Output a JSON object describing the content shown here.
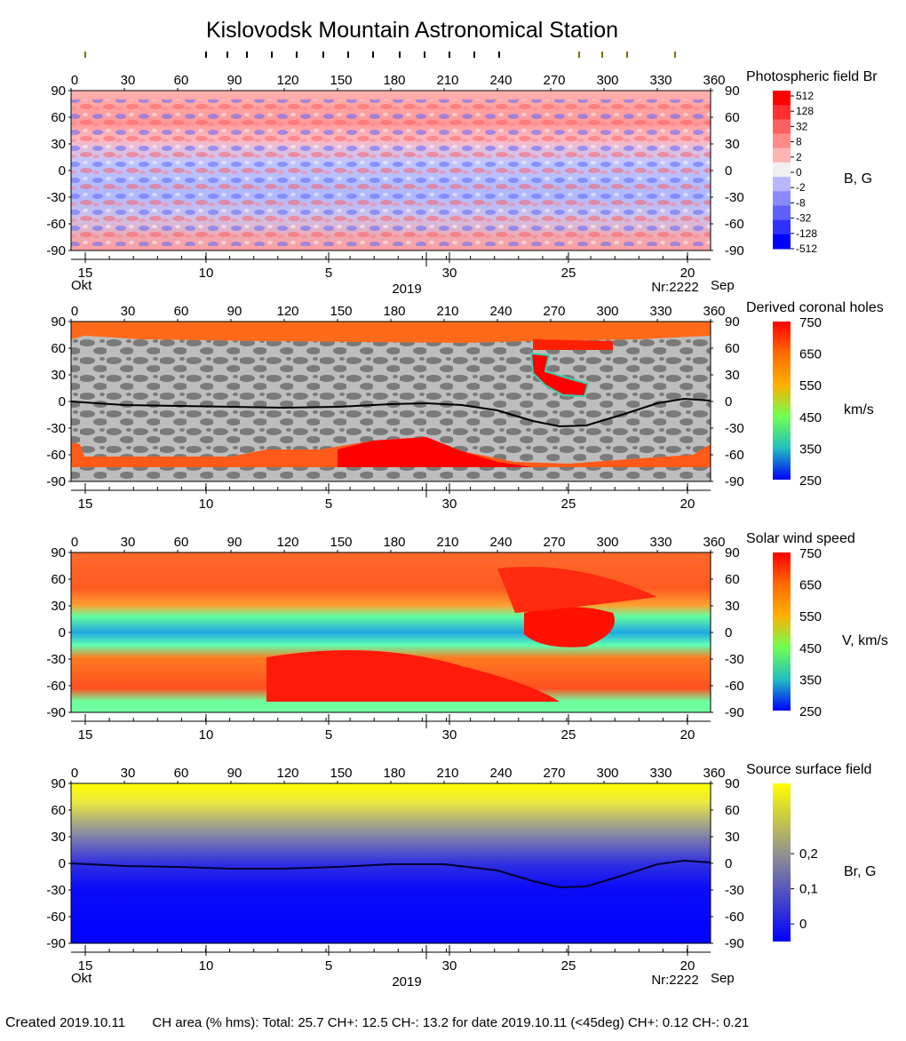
{
  "title": "Kislovodsk Mountain Astronomical Station",
  "top_ticks": [
    {
      "lon": 8,
      "color": "#807000"
    },
    {
      "lon": 76,
      "color": "#000000"
    },
    {
      "lon": 88,
      "color": "#000000"
    },
    {
      "lon": 99,
      "color": "#000000"
    },
    {
      "lon": 113,
      "color": "#000000"
    },
    {
      "lon": 127,
      "color": "#000000"
    },
    {
      "lon": 142,
      "color": "#000000"
    },
    {
      "lon": 156,
      "color": "#000000"
    },
    {
      "lon": 170,
      "color": "#000000"
    },
    {
      "lon": 185,
      "color": "#000000"
    },
    {
      "lon": 199,
      "color": "#000000"
    },
    {
      "lon": 213,
      "color": "#000000"
    },
    {
      "lon": 227,
      "color": "#000000"
    },
    {
      "lon": 241,
      "color": "#000000"
    },
    {
      "lon": 286,
      "color": "#807000"
    },
    {
      "lon": 299,
      "color": "#807000"
    },
    {
      "lon": 313,
      "color": "#807000"
    },
    {
      "lon": 340,
      "color": "#807000"
    }
  ],
  "chart_data": [
    {
      "type": "heatmap",
      "title": "Photospheric field Br",
      "unit": "B, G",
      "x_ticks": [
        "0",
        "30",
        "60",
        "90",
        "120",
        "150",
        "180",
        "210",
        "240",
        "270",
        "300",
        "330",
        "360"
      ],
      "y_ticks": [
        "90",
        "60",
        "30",
        "0",
        "-30",
        "-60",
        "-90"
      ],
      "xlim": [
        0,
        360
      ],
      "ylim": [
        -90,
        90
      ],
      "date_ticks": [
        {
          "lon": 8,
          "label": "15"
        },
        {
          "lon": 76,
          "label": "10"
        },
        {
          "lon": 145,
          "label": "5"
        },
        {
          "lon": 213,
          "label": "30"
        },
        {
          "lon": 280,
          "label": "25"
        },
        {
          "lon": 347,
          "label": "20"
        }
      ],
      "month_left": "Okt",
      "year": "2019",
      "rotation": "Nr:2222",
      "month_right": "Sep",
      "colorbar": {
        "labels": [
          "512",
          "128",
          "32",
          "8",
          "2",
          "0",
          "-2",
          "-8",
          "-32",
          "-128",
          "-512"
        ],
        "colors": [
          "#ff0000",
          "#ff3030",
          "#ff6060",
          "#ff8a8a",
          "#ffb4b4",
          "#f0f0f0",
          "#b8b8ff",
          "#8a8aff",
          "#6060ff",
          "#3030ff",
          "#0000ff"
        ]
      }
    },
    {
      "type": "heatmap",
      "title": "Derived coronal holes",
      "unit": "km/s",
      "x_ticks": [
        "0",
        "30",
        "60",
        "90",
        "120",
        "150",
        "180",
        "210",
        "240",
        "270",
        "300",
        "330",
        "360"
      ],
      "y_ticks": [
        "90",
        "60",
        "30",
        "0",
        "-30",
        "-60",
        "-90"
      ],
      "xlim": [
        0,
        360
      ],
      "ylim": [
        -90,
        90
      ],
      "date_ticks": [
        {
          "lon": 8,
          "label": "15"
        },
        {
          "lon": 76,
          "label": "10"
        },
        {
          "lon": 145,
          "label": "5"
        },
        {
          "lon": 213,
          "label": "30"
        },
        {
          "lon": 280,
          "label": "25"
        },
        {
          "lon": 347,
          "label": "20"
        }
      ],
      "colorbar": {
        "labels": [
          "750",
          "650",
          "550",
          "450",
          "350",
          "250"
        ],
        "colors": [
          "#ff0000",
          "#ff6a00",
          "#ffb000",
          "#70ff50",
          "#20c0c0",
          "#0000ff"
        ]
      },
      "neutral_line": [
        [
          0,
          0
        ],
        [
          30,
          -4
        ],
        [
          60,
          -5
        ],
        [
          90,
          -6
        ],
        [
          120,
          -7
        ],
        [
          150,
          -6
        ],
        [
          180,
          -3
        ],
        [
          200,
          -2
        ],
        [
          220,
          -4
        ],
        [
          240,
          -10
        ],
        [
          260,
          -22
        ],
        [
          275,
          -28
        ],
        [
          290,
          -27
        ],
        [
          310,
          -15
        ],
        [
          330,
          -2
        ],
        [
          345,
          3
        ],
        [
          360,
          1
        ]
      ]
    },
    {
      "type": "heatmap",
      "title": "Solar wind speed",
      "unit": "V, km/s",
      "x_ticks": [
        "0",
        "30",
        "60",
        "90",
        "120",
        "150",
        "180",
        "210",
        "240",
        "270",
        "300",
        "330",
        "360"
      ],
      "y_ticks": [
        "90",
        "60",
        "30",
        "0",
        "-30",
        "-60",
        "-90"
      ],
      "xlim": [
        0,
        360
      ],
      "ylim": [
        -90,
        90
      ],
      "date_ticks": [
        {
          "lon": 8,
          "label": "15"
        },
        {
          "lon": 76,
          "label": "10"
        },
        {
          "lon": 145,
          "label": "5"
        },
        {
          "lon": 213,
          "label": "30"
        },
        {
          "lon": 280,
          "label": "25"
        },
        {
          "lon": 347,
          "label": "20"
        }
      ],
      "colorbar": {
        "labels": [
          "750",
          "650",
          "550",
          "450",
          "350",
          "250"
        ],
        "colors": [
          "#ff0000",
          "#ff6a00",
          "#ffb000",
          "#70ff50",
          "#20c0c0",
          "#0000ff"
        ]
      }
    },
    {
      "type": "heatmap",
      "title": "Source surface field",
      "unit": "Br, G",
      "x_ticks": [
        "0",
        "30",
        "60",
        "90",
        "120",
        "150",
        "180",
        "210",
        "240",
        "270",
        "300",
        "330",
        "360"
      ],
      "y_ticks": [
        "90",
        "60",
        "30",
        "0",
        "-30",
        "-60",
        "-90"
      ],
      "xlim": [
        0,
        360
      ],
      "ylim": [
        -90,
        90
      ],
      "date_ticks": [
        {
          "lon": 8,
          "label": "15"
        },
        {
          "lon": 76,
          "label": "10"
        },
        {
          "lon": 145,
          "label": "5"
        },
        {
          "lon": 213,
          "label": "30"
        },
        {
          "lon": 280,
          "label": "25"
        },
        {
          "lon": 347,
          "label": "20"
        }
      ],
      "month_left": "Okt",
      "year": "2019",
      "rotation": "Nr:2222",
      "month_right": "Sep",
      "colorbar": {
        "labels": [
          "0,2",
          "0,1",
          "0"
        ],
        "label_values": [
          0.2,
          0.1,
          0
        ],
        "range": [
          -0.05,
          0.4
        ]
      },
      "neutral_line": [
        [
          0,
          0
        ],
        [
          30,
          -3
        ],
        [
          60,
          -4
        ],
        [
          90,
          -6
        ],
        [
          120,
          -6
        ],
        [
          150,
          -4
        ],
        [
          180,
          -1
        ],
        [
          210,
          -1
        ],
        [
          240,
          -8
        ],
        [
          260,
          -20
        ],
        [
          275,
          -27
        ],
        [
          290,
          -26
        ],
        [
          310,
          -14
        ],
        [
          330,
          -1
        ],
        [
          345,
          3
        ],
        [
          360,
          1
        ]
      ]
    }
  ],
  "footer": {
    "created_label": "Created",
    "created_date": "2019.10.11",
    "ch_area": "CH area (% hms): Total: 25.7 CH+: 12.5    CH-: 13.2 for date 2019.10.11 (<45deg) CH+: 0.12    CH-: 0.21"
  }
}
